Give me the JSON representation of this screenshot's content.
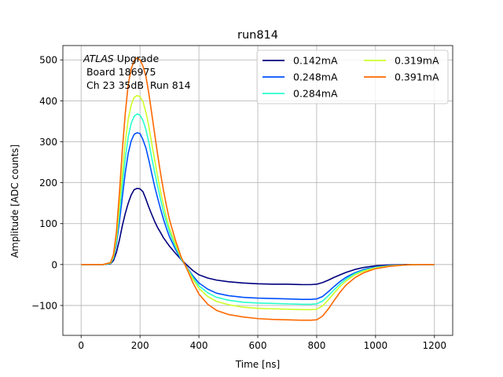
{
  "chart_data": {
    "type": "line",
    "title": "run814",
    "xlabel": "Time [ns]",
    "ylabel": "Amplitude [ADC counts]",
    "xlim": [
      -62,
      1262
    ],
    "ylim": [
      -173,
      535
    ],
    "xticks": [
      0,
      200,
      400,
      600,
      800,
      1000,
      1200
    ],
    "yticks": [
      -100,
      0,
      100,
      200,
      300,
      400,
      500
    ],
    "ytick_labels": [
      "−100",
      "0",
      "100",
      "200",
      "300",
      "400",
      "500"
    ],
    "grid": true,
    "legend_position": "top-right",
    "legend_columns": 2,
    "annotation": {
      "italic": "ATLAS",
      "line1_rest": " Upgrade",
      "line2": " Board 186975",
      "line3": " Ch 23 35dB  Run 814"
    },
    "x": [
      0,
      25,
      50,
      75,
      100,
      110,
      120,
      130,
      140,
      150,
      160,
      170,
      180,
      190,
      200,
      210,
      220,
      230,
      240,
      250,
      260,
      270,
      280,
      290,
      300,
      320,
      340,
      360,
      380,
      400,
      430,
      460,
      500,
      550,
      600,
      650,
      700,
      750,
      780,
      800,
      820,
      840,
      860,
      880,
      900,
      930,
      960,
      1000,
      1050,
      1100,
      1150,
      1200
    ],
    "series": [
      {
        "name": "0.142mA",
        "color": "#00007f",
        "values": [
          0,
          0,
          0,
          0,
          2,
          10,
          30,
          60,
          95,
          125,
          150,
          170,
          183,
          186,
          185,
          178,
          160,
          140,
          122,
          105,
          90,
          78,
          65,
          55,
          45,
          28,
          12,
          -2,
          -15,
          -25,
          -33,
          -38,
          -42,
          -45,
          -47,
          -48,
          -48,
          -49,
          -49,
          -48,
          -44,
          -38,
          -31,
          -25,
          -19,
          -12,
          -7,
          -3,
          -1,
          0,
          0,
          0
        ]
      },
      {
        "name": "0.248mA",
        "color": "#0050ff",
        "values": [
          0,
          0,
          0,
          0,
          3,
          15,
          50,
          105,
          165,
          225,
          272,
          302,
          318,
          322,
          320,
          305,
          285,
          255,
          222,
          190,
          162,
          135,
          110,
          88,
          68,
          38,
          12,
          -8,
          -28,
          -45,
          -60,
          -70,
          -76,
          -80,
          -82,
          -83,
          -84,
          -85,
          -85,
          -84,
          -78,
          -66,
          -53,
          -41,
          -31,
          -20,
          -12,
          -6,
          -2,
          -1,
          0,
          0
        ]
      },
      {
        "name": "0.284mA",
        "color": "#29ffce",
        "values": [
          0,
          0,
          0,
          0,
          3,
          17,
          58,
          125,
          195,
          260,
          312,
          345,
          362,
          368,
          365,
          352,
          330,
          298,
          260,
          225,
          190,
          158,
          128,
          103,
          80,
          44,
          14,
          -9,
          -32,
          -52,
          -69,
          -80,
          -87,
          -92,
          -94,
          -95,
          -96,
          -97,
          -97,
          -96,
          -89,
          -76,
          -61,
          -47,
          -35,
          -22,
          -14,
          -7,
          -3,
          -1,
          0,
          0
        ]
      },
      {
        "name": "0.319mA",
        "color": "#ceff29",
        "values": [
          0,
          0,
          0,
          0,
          4,
          20,
          66,
          145,
          225,
          300,
          355,
          390,
          408,
          413,
          410,
          398,
          372,
          338,
          295,
          255,
          215,
          178,
          145,
          115,
          89,
          50,
          16,
          -10,
          -36,
          -58,
          -78,
          -90,
          -98,
          -104,
          -107,
          -108,
          -109,
          -110,
          -110,
          -109,
          -101,
          -86,
          -69,
          -53,
          -40,
          -25,
          -16,
          -8,
          -3,
          -1,
          0,
          0
        ]
      },
      {
        "name": "0.391mA",
        "color": "#ff6800",
        "values": [
          0,
          0,
          0,
          0,
          5,
          25,
          80,
          175,
          280,
          370,
          440,
          478,
          498,
          505,
          500,
          485,
          460,
          418,
          368,
          318,
          268,
          222,
          180,
          143,
          110,
          60,
          18,
          -12,
          -45,
          -72,
          -97,
          -112,
          -122,
          -128,
          -132,
          -134,
          -135,
          -136,
          -136,
          -135,
          -126,
          -108,
          -87,
          -67,
          -50,
          -32,
          -20,
          -10,
          -4,
          -1,
          0,
          0
        ]
      }
    ]
  }
}
